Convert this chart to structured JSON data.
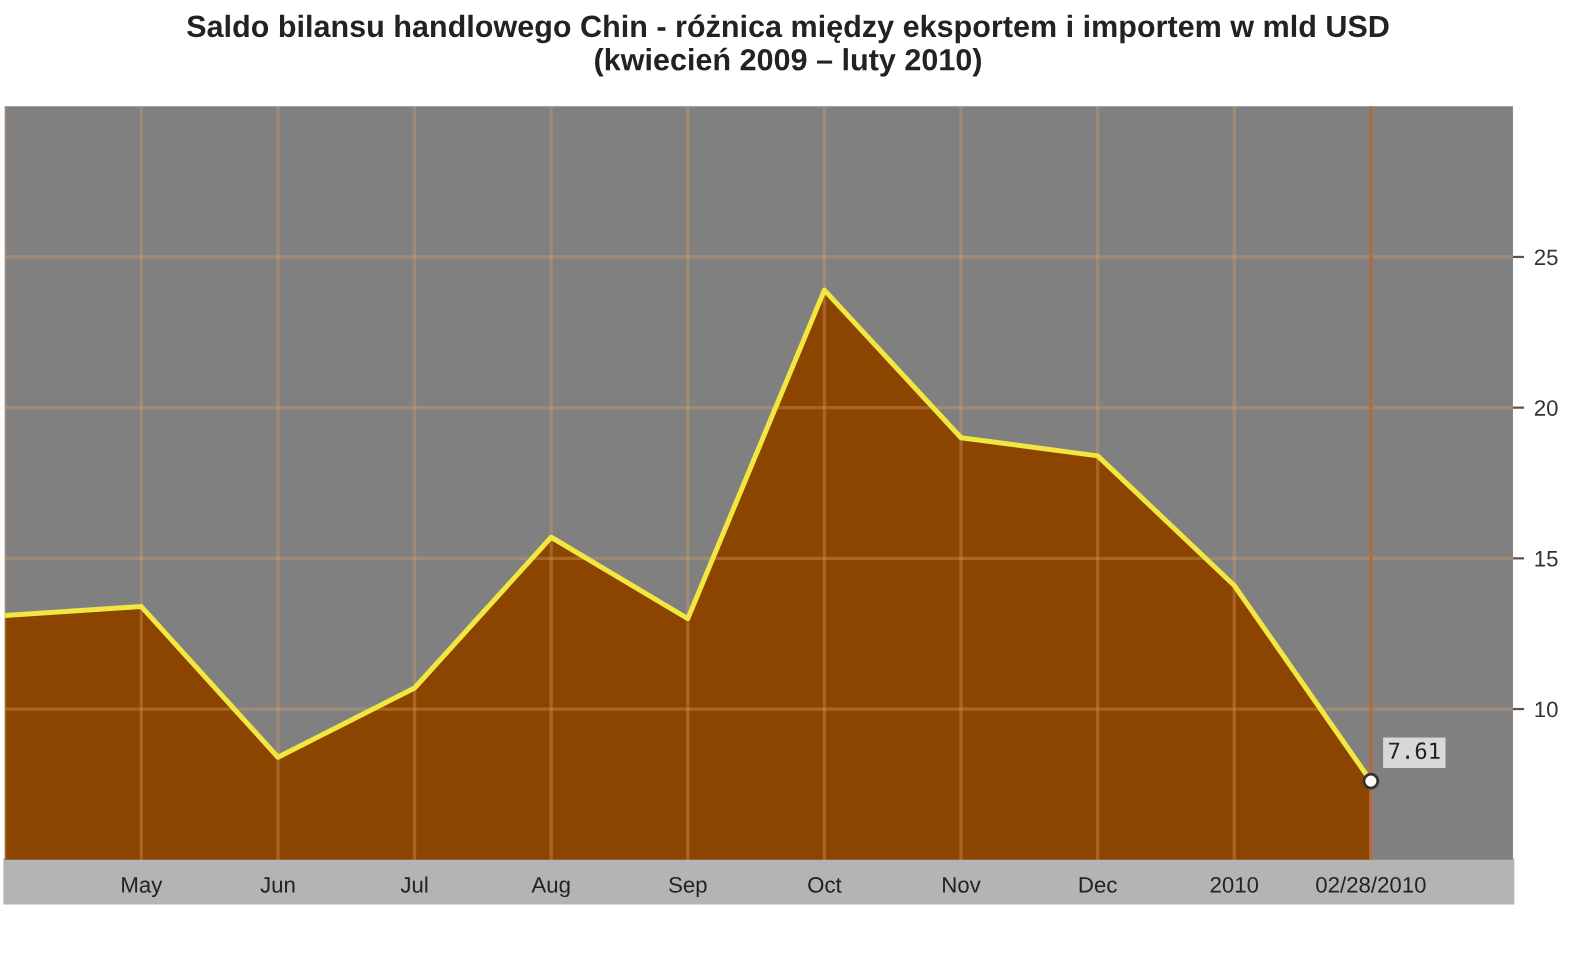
{
  "chart_data": {
    "type": "area",
    "title": "Saldo bilansu handlowego Chin - różnica między eksportem i importem w mld USD\n(kwiecień 2009 – luty 2010)",
    "categories": [
      null,
      "May",
      "Jun",
      "Jul",
      "Aug",
      "Sep",
      "Oct",
      "Nov",
      "Dec",
      "2010",
      "02/28/2010"
    ],
    "series": [
      {
        "color": "#8b4500",
        "values": [
          13.1,
          13.4,
          8.4,
          10.7,
          15.7,
          13.0,
          23.9,
          19.0,
          18.4,
          14.1,
          7.61
        ],
        "value_labels": [
          null,
          null,
          null,
          null,
          null,
          null,
          null,
          null,
          null,
          null,
          "7.61"
        ]
      }
    ],
    "ylim": [
      5,
      30
    ],
    "yticks": [
      10,
      15,
      20,
      25
    ],
    "ref_lines": [
      {
        "axis": "x",
        "value": "02/28/2010",
        "color": "#b06a45"
      }
    ],
    "grid": true,
    "legend": false
  }
}
